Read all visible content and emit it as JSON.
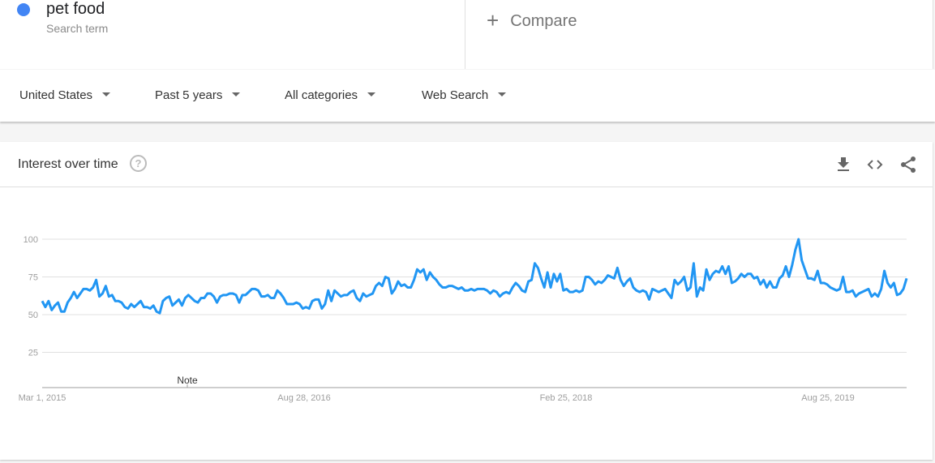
{
  "search_term": {
    "name": "pet food",
    "subtitle": "Search term",
    "color": "#4285f4"
  },
  "compare": {
    "label": "Compare",
    "icon": "plus-icon"
  },
  "filters": [
    {
      "label": "United States"
    },
    {
      "label": "Past 5 years"
    },
    {
      "label": "All categories"
    },
    {
      "label": "Web Search"
    }
  ],
  "card": {
    "title": "Interest over time",
    "help_icon": "?",
    "actions": [
      "download-icon",
      "embed-icon",
      "share-icon"
    ]
  },
  "chart_data": {
    "type": "line",
    "title": "Interest over time",
    "x_start": "2015-03-01",
    "x_interval": "week",
    "ylim": [
      0,
      100
    ],
    "yticks": [
      25,
      50,
      75,
      100
    ],
    "xtick_labels": [
      "Mar 1, 2015",
      "Aug 28, 2016",
      "Feb 25, 2018",
      "Aug 25, 2019"
    ],
    "annotation": "Note",
    "grid": true,
    "line_color": "#2196f3",
    "series": [
      {
        "values": [
          59,
          55,
          59,
          53,
          56,
          58,
          52,
          52,
          58,
          61,
          65,
          61,
          64,
          67,
          67,
          66,
          68,
          73,
          62,
          64,
          69,
          62,
          63,
          59,
          59,
          58,
          55,
          54,
          57,
          55,
          57,
          59,
          55,
          55,
          54,
          56,
          52,
          51,
          59,
          61,
          62,
          56,
          58,
          60,
          56,
          61,
          63,
          61,
          59,
          58,
          61,
          61,
          64,
          64,
          62,
          58,
          62,
          63,
          63,
          64,
          64,
          63,
          58,
          63,
          63,
          65,
          67,
          67,
          66,
          62,
          62,
          63,
          61,
          61,
          66,
          64,
          61,
          57,
          57,
          57,
          58,
          57,
          54,
          55,
          54,
          59,
          60,
          60,
          54,
          57,
          66,
          59,
          66,
          64,
          62,
          63,
          63,
          65,
          66,
          61,
          59,
          64,
          62,
          63,
          64,
          69,
          71,
          69,
          75,
          74,
          64,
          67,
          72,
          69,
          70,
          68,
          68,
          73,
          80,
          78,
          80,
          73,
          78,
          75,
          73,
          70,
          68,
          68,
          69,
          69,
          68,
          67,
          68,
          66,
          66,
          67,
          66,
          67,
          67,
          67,
          66,
          64,
          66,
          65,
          62,
          64,
          65,
          64,
          68,
          71,
          69,
          66,
          65,
          72,
          73,
          84,
          81,
          74,
          68,
          78,
          68,
          77,
          72,
          77,
          66,
          67,
          65,
          65,
          66,
          65,
          66,
          75,
          75,
          73,
          70,
          72,
          71,
          73,
          76,
          75,
          74,
          81,
          73,
          69,
          72,
          74,
          68,
          66,
          65,
          66,
          65,
          60,
          67,
          66,
          65,
          66,
          67,
          64,
          61,
          73,
          70,
          72,
          75,
          66,
          68,
          84,
          62,
          68,
          66,
          80,
          73,
          77,
          79,
          78,
          82,
          77,
          82,
          71,
          72,
          74,
          77,
          75,
          77,
          77,
          74,
          75,
          70,
          73,
          68,
          72,
          68,
          68,
          74,
          76,
          82,
          75,
          83,
          93,
          100,
          86,
          80,
          74,
          74,
          73,
          79,
          71,
          71,
          70,
          68,
          67,
          66,
          67,
          75,
          65,
          65,
          66,
          62,
          64,
          65,
          66,
          67,
          62,
          64,
          62,
          67,
          79,
          71,
          68,
          71,
          63,
          64,
          67,
          74
        ]
      }
    ]
  }
}
